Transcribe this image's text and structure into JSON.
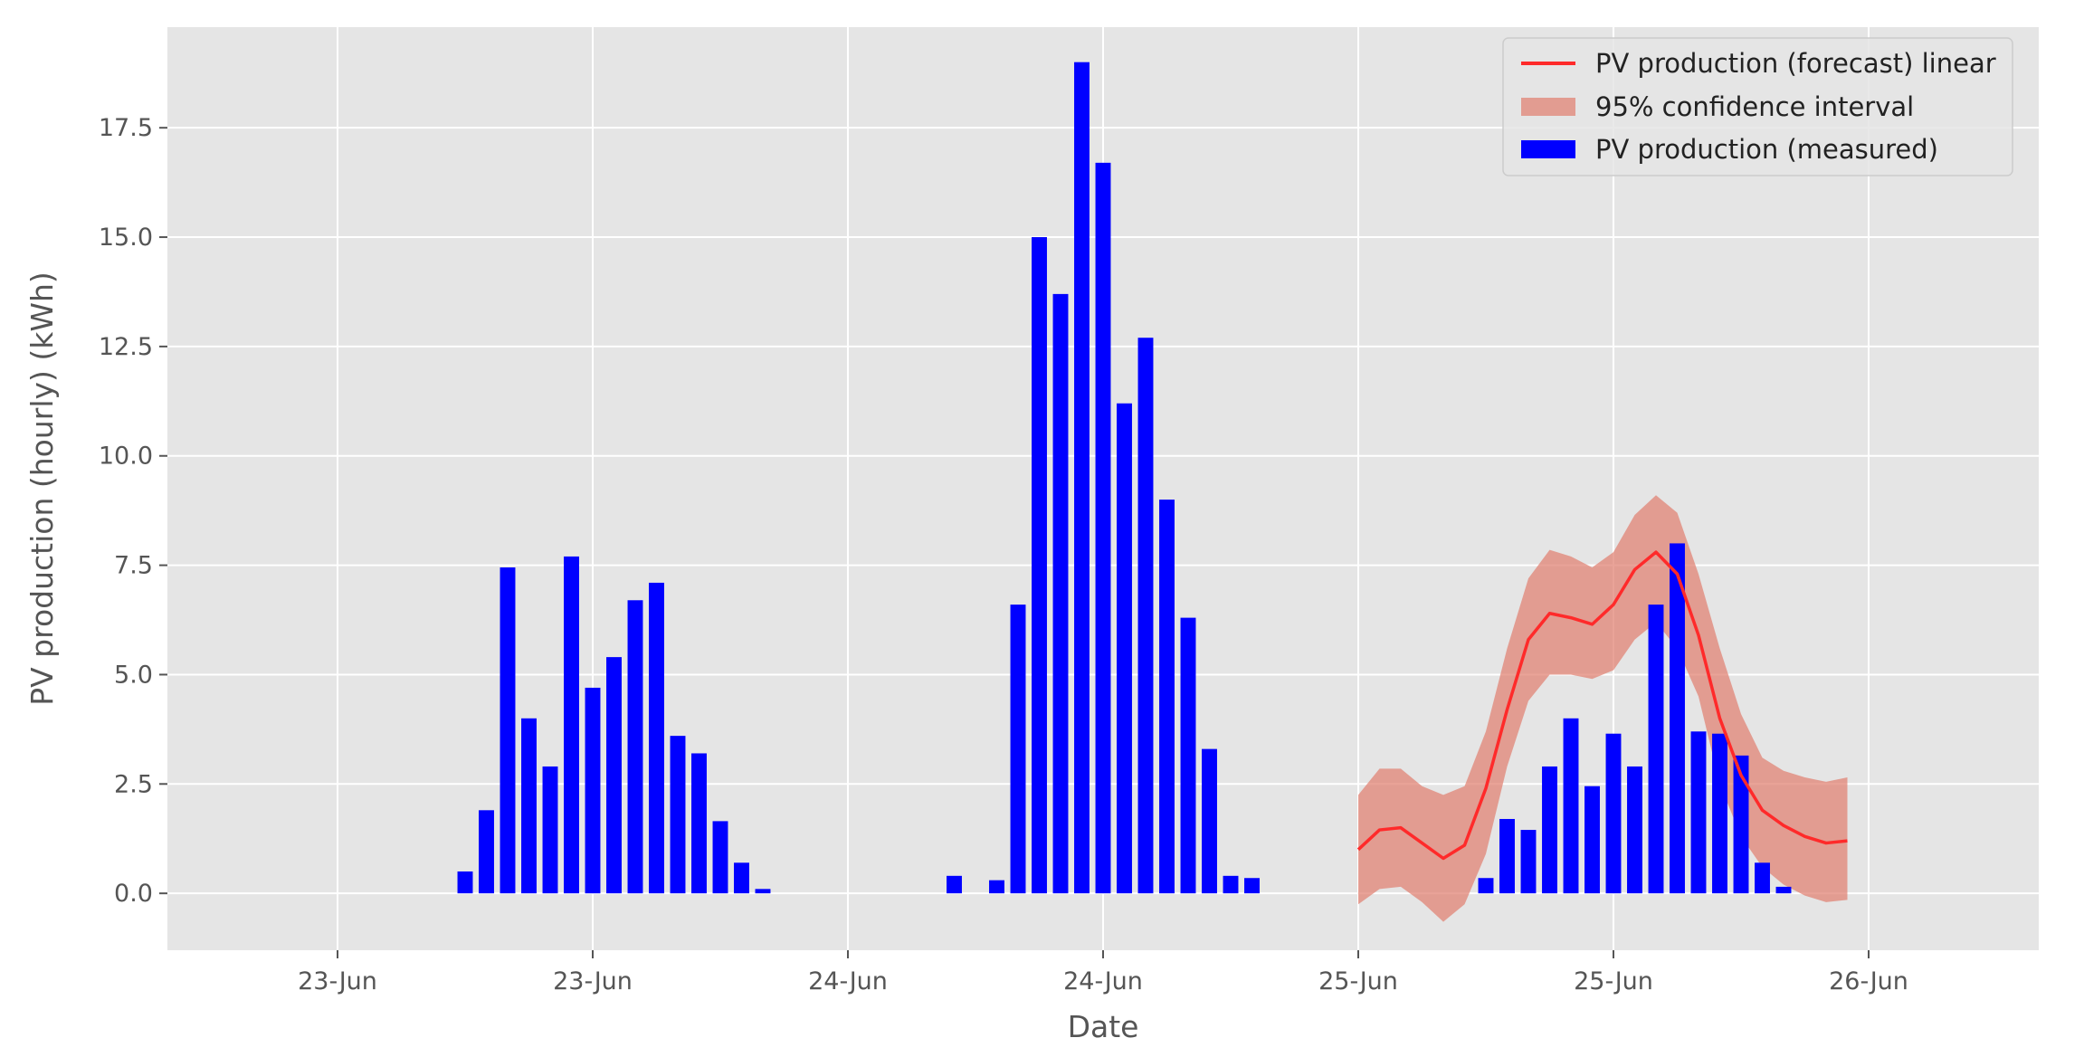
{
  "chart_data": {
    "type": "bar",
    "xlabel": "Date",
    "ylabel": "PV production (hourly) (kWh)",
    "xlim": [
      -8.0,
      80.0
    ],
    "ylim": [
      -1.3,
      19.8
    ],
    "grid": true,
    "legend_position": "top-right",
    "x_ticks": [
      {
        "hour": 0,
        "label": "23-Jun"
      },
      {
        "hour": 12,
        "label": "23-Jun"
      },
      {
        "hour": 24,
        "label": "24-Jun"
      },
      {
        "hour": 36,
        "label": "24-Jun"
      },
      {
        "hour": 48,
        "label": "25-Jun"
      },
      {
        "hour": 60,
        "label": "25-Jun"
      },
      {
        "hour": 72,
        "label": "26-Jun"
      }
    ],
    "y_ticks": [
      0.0,
      2.5,
      5.0,
      7.5,
      10.0,
      12.5,
      15.0,
      17.5
    ],
    "y_tick_labels": [
      "0.0",
      "2.5",
      "5.0",
      "7.5",
      "10.0",
      "12.5",
      "15.0",
      "17.5"
    ],
    "colors": {
      "background": "#e5e5e5",
      "grid": "#ffffff",
      "bars": "#0000ff",
      "forecast_line": "#ff2a2a",
      "confidence_band": "#e08070"
    },
    "series": [
      {
        "name": "PV production (measured)",
        "kind": "bar",
        "x": [
          6,
          7,
          8,
          9,
          10,
          11,
          12,
          13,
          14,
          15,
          16,
          17,
          18,
          19,
          20,
          29,
          31,
          32,
          33,
          34,
          35,
          36,
          37,
          38,
          39,
          40,
          41,
          42,
          43,
          54,
          55,
          56,
          57,
          58,
          59,
          60,
          61,
          62,
          63,
          64,
          65,
          66,
          67,
          68
        ],
        "values": [
          0.5,
          1.9,
          7.45,
          4.0,
          2.9,
          7.7,
          4.7,
          5.4,
          6.7,
          7.1,
          3.6,
          3.2,
          1.65,
          0.7,
          0.1,
          0.4,
          0.3,
          6.6,
          15.0,
          13.7,
          19.0,
          16.7,
          11.2,
          12.7,
          9.0,
          6.3,
          3.3,
          0.4,
          0.35,
          0.35,
          1.7,
          1.45,
          2.9,
          4.0,
          2.45,
          3.65,
          2.9,
          6.6,
          8.0,
          3.7,
          3.65,
          3.15,
          0.7,
          0.15
        ]
      },
      {
        "name": "PV production (forecast) linear",
        "kind": "line",
        "x": [
          48,
          49,
          50,
          51,
          52,
          53,
          54,
          55,
          56,
          57,
          58,
          59,
          60,
          61,
          62,
          63,
          64,
          65,
          66,
          67,
          68,
          69,
          70,
          71
        ],
        "values": [
          1.0,
          1.45,
          1.5,
          1.15,
          0.8,
          1.1,
          2.4,
          4.2,
          5.8,
          6.4,
          6.3,
          6.15,
          6.6,
          7.4,
          7.8,
          7.3,
          5.9,
          4.0,
          2.7,
          1.9,
          1.55,
          1.3,
          1.15,
          1.2
        ]
      },
      {
        "name": "95% confidence interval",
        "kind": "band",
        "x": [
          48,
          49,
          50,
          51,
          52,
          53,
          54,
          55,
          56,
          57,
          58,
          59,
          60,
          61,
          62,
          63,
          64,
          65,
          66,
          67,
          68,
          69,
          70,
          71
        ],
        "lower": [
          -0.25,
          0.1,
          0.15,
          -0.2,
          -0.65,
          -0.25,
          0.9,
          2.9,
          4.4,
          5.0,
          5.0,
          4.9,
          5.1,
          5.8,
          6.2,
          5.6,
          4.5,
          2.5,
          1.3,
          0.6,
          0.2,
          -0.05,
          -0.2,
          -0.15
        ],
        "upper": [
          2.25,
          2.85,
          2.85,
          2.45,
          2.25,
          2.45,
          3.7,
          5.6,
          7.2,
          7.85,
          7.7,
          7.45,
          7.8,
          8.65,
          9.1,
          8.7,
          7.3,
          5.6,
          4.1,
          3.1,
          2.8,
          2.65,
          2.55,
          2.65
        ]
      }
    ],
    "legend": [
      {
        "label": "PV production (forecast) linear",
        "kind": "line",
        "color": "#ff2a2a"
      },
      {
        "label": "95% confidence interval",
        "kind": "patch",
        "color": "#e08070"
      },
      {
        "label": "PV production (measured)",
        "kind": "patch",
        "color": "#0000ff"
      }
    ]
  }
}
